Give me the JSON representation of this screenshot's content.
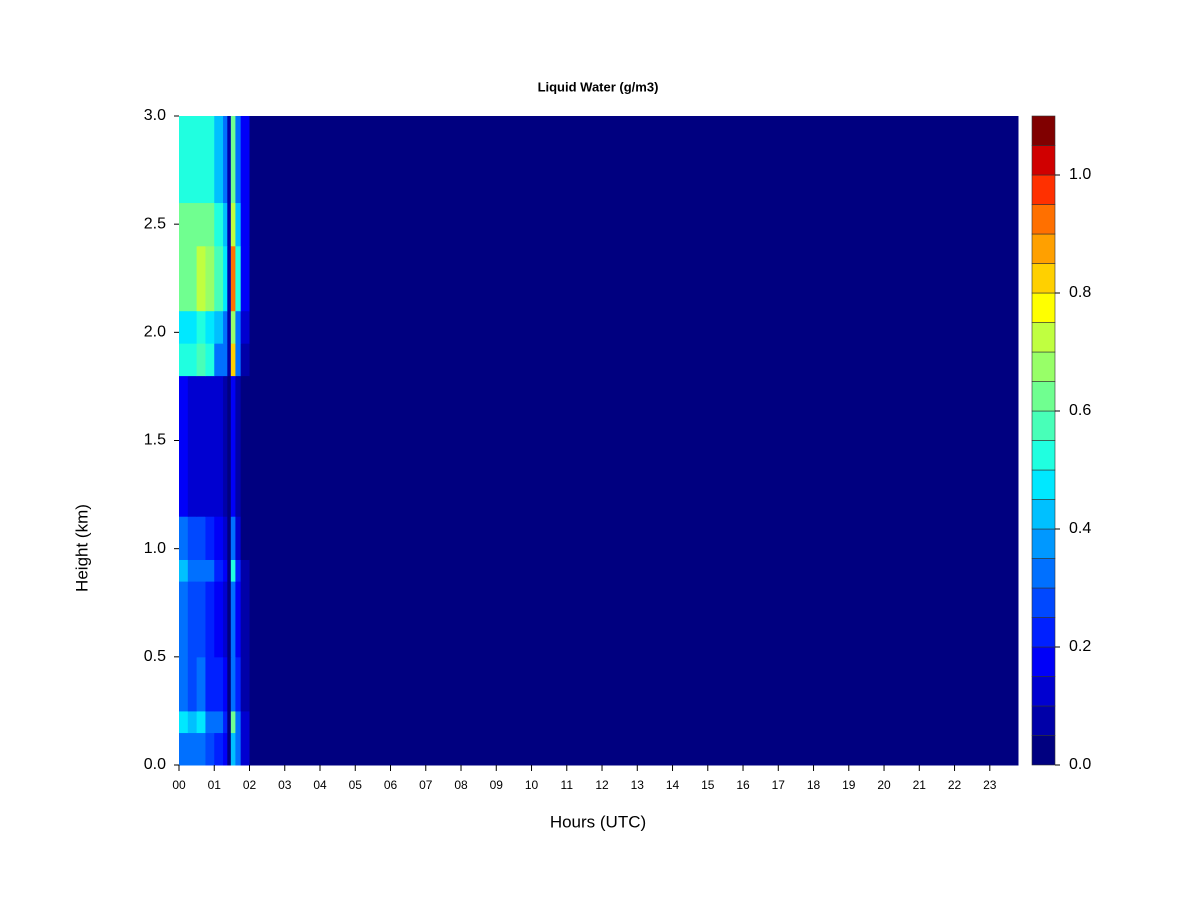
{
  "chart_data": {
    "type": "heatmap",
    "title": "Liquid Water (g/m3)",
    "x_label": "Hours (UTC)",
    "y_label": "Height (km)",
    "x_edges": [
      0,
      0.25,
      0.5,
      0.75,
      1.0,
      1.25,
      1.37,
      1.47,
      1.6,
      1.75,
      2.0,
      3.2,
      23.8
    ],
    "y_edges": [
      0,
      0.15,
      0.25,
      0.5,
      0.85,
      0.95,
      1.15,
      1.8,
      1.95,
      2.1,
      2.4,
      2.6,
      3.0
    ],
    "z": [
      [
        0.35,
        0.3,
        0.3,
        0.25,
        0.2,
        0.15,
        0.02,
        0.4,
        0.3,
        0.1,
        0.02,
        0
      ],
      [
        0.45,
        0.4,
        0.45,
        0.35,
        0.3,
        0.2,
        0.02,
        0.6,
        0.35,
        0.1,
        0.02,
        0
      ],
      [
        0.3,
        0.25,
        0.3,
        0.2,
        0.2,
        0.15,
        0.02,
        0.35,
        0.2,
        0.05,
        0.01,
        0
      ],
      [
        0.3,
        0.25,
        0.25,
        0.2,
        0.15,
        0.12,
        0.02,
        0.35,
        0.15,
        0.05,
        0,
        0
      ],
      [
        0.4,
        0.35,
        0.35,
        0.3,
        0.2,
        0.15,
        0.02,
        0.5,
        0.2,
        0.05,
        0,
        0
      ],
      [
        0.3,
        0.25,
        0.25,
        0.2,
        0.15,
        0.1,
        0.02,
        0.3,
        0.1,
        0.03,
        0,
        0
      ],
      [
        0.15,
        0.12,
        0.12,
        0.1,
        0.1,
        0.08,
        0.02,
        0.15,
        0.08,
        0.02,
        0,
        0
      ],
      [
        0.5,
        0.5,
        0.55,
        0.5,
        0.35,
        0.3,
        0.05,
        0.8,
        0.3,
        0.08,
        0.01,
        0
      ],
      [
        0.45,
        0.45,
        0.5,
        0.45,
        0.4,
        0.35,
        0.05,
        0.7,
        0.35,
        0.1,
        0.02,
        0
      ],
      [
        0.65,
        0.65,
        0.75,
        0.7,
        0.55,
        0.45,
        0.05,
        0.95,
        0.5,
        0.15,
        0.03,
        0
      ],
      [
        0.6,
        0.6,
        0.65,
        0.6,
        0.5,
        0.4,
        0.05,
        0.75,
        0.4,
        0.15,
        0.03,
        0
      ],
      [
        0.5,
        0.5,
        0.5,
        0.5,
        0.4,
        0.35,
        0.05,
        0.6,
        0.35,
        0.15,
        0.03,
        0
      ]
    ],
    "colors": [
      "#000080",
      "#0000A8",
      "#0000D0",
      "#0000F8",
      "#0020FF",
      "#0048FF",
      "#0070FF",
      "#0098FF",
      "#00C0FF",
      "#00E8FF",
      "#20FFE0",
      "#48FFB8",
      "#70FF90",
      "#98FF68",
      "#C0FF40",
      "#FFFF00",
      "#FFD000",
      "#FFA000",
      "#FF7000",
      "#FF3000",
      "#D00000",
      "#800000"
    ],
    "xlim": [
      0,
      23.8
    ],
    "ylim": [
      0,
      3.0
    ],
    "zlim": [
      0,
      1.1
    ],
    "xticks": [
      {
        "value": 0,
        "label": "00"
      },
      {
        "value": 1,
        "label": "01"
      },
      {
        "value": 2,
        "label": "02"
      },
      {
        "value": 3,
        "label": "03"
      },
      {
        "value": 4,
        "label": "04"
      },
      {
        "value": 5,
        "label": "05"
      },
      {
        "value": 6,
        "label": "06"
      },
      {
        "value": 7,
        "label": "07"
      },
      {
        "value": 8,
        "label": "08"
      },
      {
        "value": 9,
        "label": "09"
      },
      10,
      11,
      12,
      13,
      14,
      15,
      16,
      17,
      18,
      19,
      20,
      21,
      22,
      23
    ],
    "yticks": [
      {
        "value": 0,
        "label": "0.0"
      },
      0.5,
      {
        "value": 1,
        "label": "1.0"
      },
      1.5,
      {
        "value": 2,
        "label": "2.0"
      },
      2.5,
      {
        "value": 3,
        "label": "3.0"
      }
    ],
    "zticks": [
      {
        "value": 0,
        "label": "0.0"
      },
      0.2,
      0.4,
      0.6,
      0.8,
      {
        "value": 1,
        "label": "1.0"
      }
    ]
  }
}
